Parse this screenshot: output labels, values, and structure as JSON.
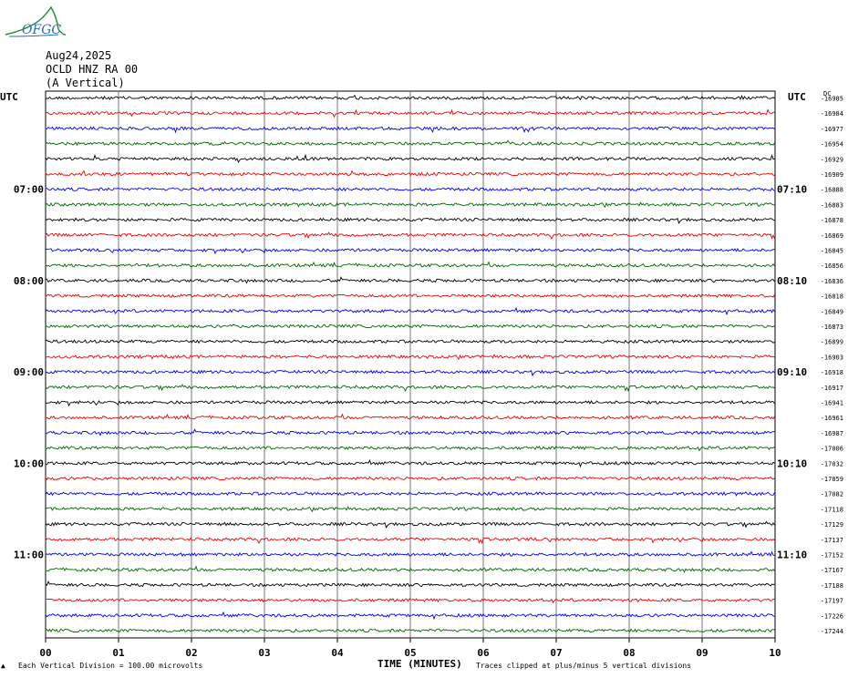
{
  "logo": {
    "text": "OFGC"
  },
  "header": {
    "date": "Aug24,2025",
    "station": "OCLD HNZ RA 00",
    "component": "(A Vertical)"
  },
  "left_axis": {
    "label": "UTC"
  },
  "right_axis": {
    "label": "UTC"
  },
  "dc_header": "DC",
  "footer": {
    "division": "Each Vertical Division =  100.00 microvolts",
    "xlabel": "TIME (MINUTES)",
    "clip_note": "Traces clipped at plus/minus 5 vertical divisions"
  },
  "chart_data": {
    "type": "line",
    "title": "",
    "xlabel": "TIME (MINUTES)",
    "ylabel": "",
    "xlim": [
      0,
      10
    ],
    "x_ticks": [
      "00",
      "01",
      "02",
      "03",
      "04",
      "05",
      "06",
      "07",
      "08",
      "09",
      "10"
    ],
    "grid": "vertical lines at each minute",
    "trace_colors": [
      "#000000",
      "#ee0000",
      "#0000ee",
      "#006400"
    ],
    "left_time_labels": [
      {
        "row": 6,
        "label": "07:00"
      },
      {
        "row": 12,
        "label": "08:00"
      },
      {
        "row": 18,
        "label": "09:00"
      },
      {
        "row": 24,
        "label": "10:00"
      },
      {
        "row": 30,
        "label": "11:00"
      }
    ],
    "right_time_labels": [
      {
        "row": 6,
        "label": "07:10"
      },
      {
        "row": 12,
        "label": "08:10"
      },
      {
        "row": 18,
        "label": "09:10"
      },
      {
        "row": 24,
        "label": "10:10"
      },
      {
        "row": 30,
        "label": "11:10"
      }
    ],
    "dc_offsets": [
      -16985,
      -16984,
      -16977,
      -16954,
      -16929,
      -16909,
      -16888,
      -16883,
      -16878,
      -16869,
      -16845,
      -16856,
      -16836,
      -16818,
      -16849,
      -16873,
      -16899,
      -16903,
      -16918,
      -16917,
      -16941,
      -16961,
      -16987,
      -17006,
      -17032,
      -17059,
      -17082,
      -17118,
      -17129,
      -17137,
      -17152,
      -17167,
      -17188,
      -17197,
      -17226,
      -17244
    ]
  }
}
